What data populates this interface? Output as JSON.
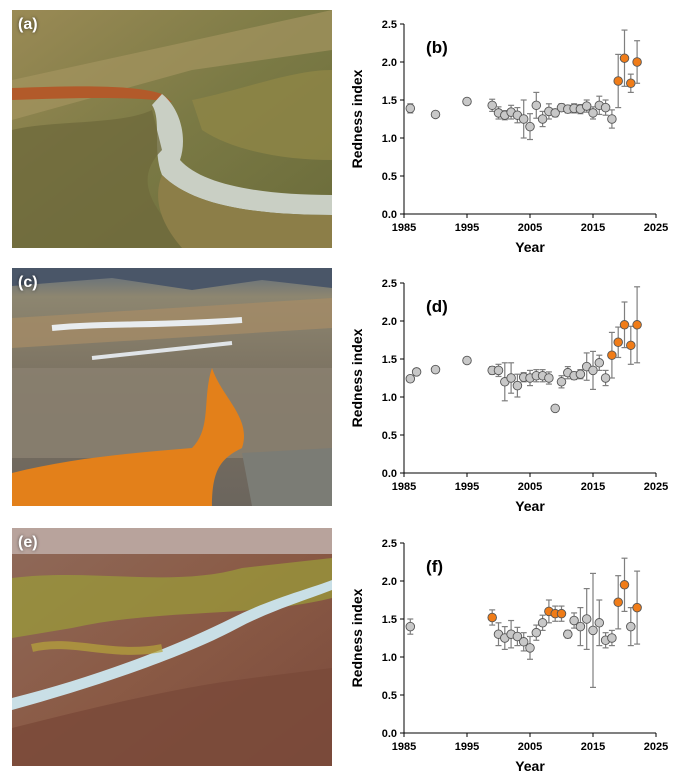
{
  "panels": [
    {
      "label": "(a)"
    },
    {
      "label": "(c)"
    },
    {
      "label": "(e)"
    }
  ],
  "colors": {
    "gray_marker": "#c8c8c8",
    "orange_marker": "#f07c18",
    "error_bar": "#7f7f7f",
    "axis": "#000000"
  },
  "chart_data": [
    {
      "type": "scatter",
      "panel_label": "(b)",
      "ylabel": "Redness index",
      "xlabel": "Year",
      "xlim": [
        1985,
        2025
      ],
      "ylim": [
        0,
        2.5
      ],
      "xticks": [
        "1985",
        "1995",
        "2005",
        "2015",
        "2025"
      ],
      "yticks": [
        "0.0",
        "0.5",
        "1.0",
        "1.5",
        "2.0",
        "2.5"
      ],
      "grid": false,
      "series": [
        {
          "marker_color": "gray",
          "points": [
            {
              "x": 1986,
              "y": 1.39,
              "err": 0.06
            },
            {
              "x": 1990,
              "y": 1.31,
              "err": 0
            },
            {
              "x": 1995,
              "y": 1.48,
              "err": 0
            },
            {
              "x": 1999,
              "y": 1.43,
              "err": 0.08
            },
            {
              "x": 2000,
              "y": 1.33,
              "err": 0.08
            },
            {
              "x": 2001,
              "y": 1.3,
              "err": 0.06
            },
            {
              "x": 2002,
              "y": 1.34,
              "err": 0.09
            },
            {
              "x": 2003,
              "y": 1.3,
              "err": 0.1
            },
            {
              "x": 2004,
              "y": 1.25,
              "err": 0.25
            },
            {
              "x": 2005,
              "y": 1.15,
              "err": 0.17
            },
            {
              "x": 2006,
              "y": 1.43,
              "err": 0.17
            },
            {
              "x": 2007,
              "y": 1.25,
              "err": 0.1
            },
            {
              "x": 2008,
              "y": 1.35,
              "err": 0.1
            },
            {
              "x": 2009,
              "y": 1.33,
              "err": 0.05
            },
            {
              "x": 2010,
              "y": 1.4,
              "err": 0.05
            },
            {
              "x": 2011,
              "y": 1.38,
              "err": 0.05
            },
            {
              "x": 2012,
              "y": 1.39,
              "err": 0.06
            },
            {
              "x": 2013,
              "y": 1.38,
              "err": 0.06
            },
            {
              "x": 2014,
              "y": 1.42,
              "err": 0.08
            },
            {
              "x": 2015,
              "y": 1.33,
              "err": 0.08
            },
            {
              "x": 2016,
              "y": 1.43,
              "err": 0.12
            },
            {
              "x": 2017,
              "y": 1.4,
              "err": 0.1
            },
            {
              "x": 2018,
              "y": 1.25,
              "err": 0.12
            }
          ]
        },
        {
          "marker_color": "orange",
          "points": [
            {
              "x": 2019,
              "y": 1.75,
              "err": 0.35
            },
            {
              "x": 2020,
              "y": 2.05,
              "err": 0.37
            },
            {
              "x": 2021,
              "y": 1.72,
              "err": 0.12
            },
            {
              "x": 2022,
              "y": 2.0,
              "err": 0.28
            }
          ]
        }
      ]
    },
    {
      "type": "scatter",
      "panel_label": "(d)",
      "ylabel": "Redness index",
      "xlabel": "Year",
      "xlim": [
        1985,
        2025
      ],
      "ylim": [
        0,
        2.5
      ],
      "xticks": [
        "1985",
        "1995",
        "2005",
        "2015",
        "2025"
      ],
      "yticks": [
        "0.0",
        "0.5",
        "1.0",
        "1.5",
        "2.0",
        "2.5"
      ],
      "grid": false,
      "series": [
        {
          "marker_color": "gray",
          "points": [
            {
              "x": 1986,
              "y": 1.24,
              "err": 0
            },
            {
              "x": 1987,
              "y": 1.33,
              "err": 0
            },
            {
              "x": 1990,
              "y": 1.36,
              "err": 0
            },
            {
              "x": 1995,
              "y": 1.48,
              "err": 0
            },
            {
              "x": 1999,
              "y": 1.35,
              "err": 0.05
            },
            {
              "x": 2000,
              "y": 1.35,
              "err": 0.08
            },
            {
              "x": 2001,
              "y": 1.2,
              "err": 0.25
            },
            {
              "x": 2002,
              "y": 1.25,
              "err": 0.2
            },
            {
              "x": 2003,
              "y": 1.15,
              "err": 0.15
            },
            {
              "x": 2004,
              "y": 1.26,
              "err": 0.06
            },
            {
              "x": 2005,
              "y": 1.25,
              "err": 0.1
            },
            {
              "x": 2006,
              "y": 1.28,
              "err": 0.08
            },
            {
              "x": 2007,
              "y": 1.28,
              "err": 0.08
            },
            {
              "x": 2008,
              "y": 1.25,
              "err": 0.08
            },
            {
              "x": 2009,
              "y": 0.85,
              "err": 0
            },
            {
              "x": 2010,
              "y": 1.2,
              "err": 0.08
            },
            {
              "x": 2011,
              "y": 1.32,
              "err": 0.08
            },
            {
              "x": 2012,
              "y": 1.28,
              "err": 0.05
            },
            {
              "x": 2013,
              "y": 1.3,
              "err": 0.06
            },
            {
              "x": 2014,
              "y": 1.4,
              "err": 0.18
            },
            {
              "x": 2015,
              "y": 1.35,
              "err": 0.25
            },
            {
              "x": 2016,
              "y": 1.45,
              "err": 0.1
            },
            {
              "x": 2017,
              "y": 1.25,
              "err": 0.1
            }
          ]
        },
        {
          "marker_color": "orange",
          "points": [
            {
              "x": 2018,
              "y": 1.55,
              "err": 0.3
            },
            {
              "x": 2019,
              "y": 1.72,
              "err": 0.2
            },
            {
              "x": 2020,
              "y": 1.95,
              "err": 0.3
            },
            {
              "x": 2021,
              "y": 1.68,
              "err": 0.25
            },
            {
              "x": 2022,
              "y": 1.95,
              "err": 0.5
            }
          ]
        }
      ]
    },
    {
      "type": "scatter",
      "panel_label": "(f)",
      "ylabel": "Redness index",
      "xlabel": "Year",
      "xlim": [
        1985,
        2025
      ],
      "ylim": [
        0,
        2.5
      ],
      "xticks": [
        "1985",
        "1995",
        "2005",
        "2015",
        "2025"
      ],
      "yticks": [
        "0.0",
        "0.5",
        "1.0",
        "1.5",
        "2.0",
        "2.5"
      ],
      "grid": false,
      "series": [
        {
          "marker_color": "gray",
          "points": [
            {
              "x": 1986,
              "y": 1.4,
              "err": 0.1
            },
            {
              "x": 2000,
              "y": 1.3,
              "err": 0.15
            },
            {
              "x": 2001,
              "y": 1.25,
              "err": 0.15
            },
            {
              "x": 2002,
              "y": 1.3,
              "err": 0.18
            },
            {
              "x": 2003,
              "y": 1.27,
              "err": 0.12
            },
            {
              "x": 2004,
              "y": 1.2,
              "err": 0.12
            },
            {
              "x": 2005,
              "y": 1.12,
              "err": 0.15
            },
            {
              "x": 2006,
              "y": 1.32,
              "err": 0.1
            },
            {
              "x": 2007,
              "y": 1.45,
              "err": 0.1
            },
            {
              "x": 2011,
              "y": 1.3,
              "err": 0.05
            },
            {
              "x": 2012,
              "y": 1.48,
              "err": 0.1
            },
            {
              "x": 2013,
              "y": 1.4,
              "err": 0.25
            },
            {
              "x": 2014,
              "y": 1.5,
              "err": 0.4
            },
            {
              "x": 2015,
              "y": 1.35,
              "err": 0.75
            },
            {
              "x": 2016,
              "y": 1.45,
              "err": 0.3
            },
            {
              "x": 2017,
              "y": 1.22,
              "err": 0.1
            },
            {
              "x": 2018,
              "y": 1.25,
              "err": 0.1
            },
            {
              "x": 2021,
              "y": 1.4,
              "err": 0.25
            }
          ]
        },
        {
          "marker_color": "orange",
          "points": [
            {
              "x": 1999,
              "y": 1.52,
              "err": 0.1
            },
            {
              "x": 2008,
              "y": 1.6,
              "err": 0.15
            },
            {
              "x": 2009,
              "y": 1.57,
              "err": 0.1
            },
            {
              "x": 2010,
              "y": 1.57,
              "err": 0.1
            },
            {
              "x": 2019,
              "y": 1.72,
              "err": 0.35
            },
            {
              "x": 2020,
              "y": 1.95,
              "err": 0.35
            },
            {
              "x": 2022,
              "y": 1.65,
              "err": 0.48
            }
          ]
        }
      ]
    }
  ]
}
